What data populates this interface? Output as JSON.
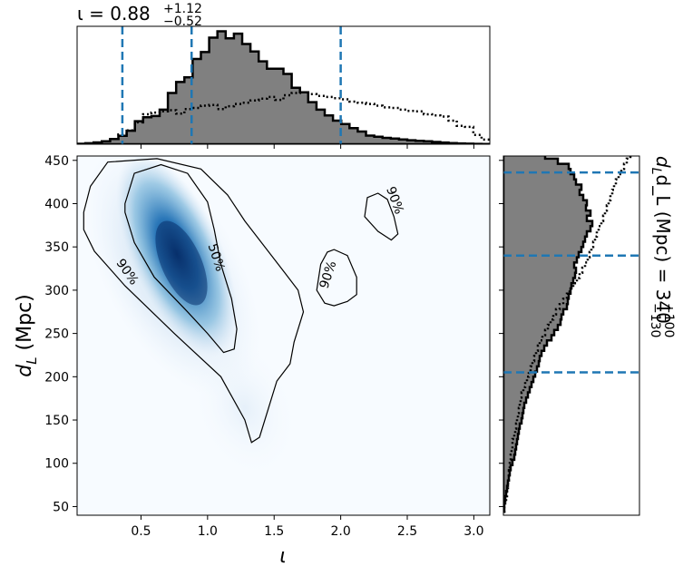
{
  "chart_data": [
    {
      "type": "heatmap",
      "panel": "joint",
      "xlabel": "ι",
      "ylabel": "d_L (Mpc)",
      "xlim": [
        0.02,
        3.12
      ],
      "ylim": [
        40,
        455
      ],
      "xticks": [
        "0.5",
        "1.0",
        "1.5",
        "2.0",
        "2.5",
        "3.0"
      ],
      "xtick_values": [
        0.5,
        1.0,
        1.5,
        2.0,
        2.5,
        3.0
      ],
      "yticks": [
        "50",
        "100",
        "150",
        "200",
        "250",
        "300",
        "350",
        "400",
        "450"
      ],
      "ytick_values": [
        50,
        100,
        150,
        200,
        250,
        300,
        350,
        400,
        450
      ],
      "colormap": "Blues",
      "density_peak": {
        "x": 0.82,
        "y": 330
      },
      "contours": [
        {
          "level": "90%",
          "points": [
            [
              0.07,
              390
            ],
            [
              0.12,
              420
            ],
            [
              0.25,
              448
            ],
            [
              0.62,
              452
            ],
            [
              0.95,
              440
            ],
            [
              1.15,
              410
            ],
            [
              1.28,
              380
            ],
            [
              1.58,
              320
            ],
            [
              1.68,
              300
            ],
            [
              1.72,
              275
            ],
            [
              1.65,
              240
            ],
            [
              1.62,
              215
            ],
            [
              1.52,
              195
            ],
            [
              1.46,
              165
            ],
            [
              1.39,
              130
            ],
            [
              1.33,
              124
            ],
            [
              1.28,
              150
            ],
            [
              1.1,
              200
            ],
            [
              0.75,
              250
            ],
            [
              0.38,
              305
            ],
            [
              0.15,
              345
            ],
            [
              0.07,
              370
            ],
            [
              0.07,
              390
            ]
          ]
        },
        {
          "level": "50%",
          "points": [
            [
              0.38,
              400
            ],
            [
              0.45,
              435
            ],
            [
              0.65,
              445
            ],
            [
              0.85,
              435
            ],
            [
              1.0,
              402
            ],
            [
              1.05,
              370
            ],
            [
              1.1,
              330
            ],
            [
              1.18,
              290
            ],
            [
              1.22,
              255
            ],
            [
              1.2,
              232
            ],
            [
              1.12,
              228
            ],
            [
              1.0,
              250
            ],
            [
              0.85,
              275
            ],
            [
              0.6,
              315
            ],
            [
              0.45,
              355
            ],
            [
              0.38,
              390
            ],
            [
              0.38,
              400
            ]
          ]
        },
        {
          "level": "90%",
          "points": [
            [
              1.82,
              300
            ],
            [
              1.85,
              330
            ],
            [
              1.9,
              344
            ],
            [
              1.95,
              347
            ],
            [
              2.05,
              340
            ],
            [
              2.12,
              315
            ],
            [
              2.12,
              295
            ],
            [
              2.05,
              287
            ],
            [
              1.95,
              282
            ],
            [
              1.88,
              285
            ],
            [
              1.82,
              300
            ]
          ]
        },
        {
          "level": "90%",
          "points": [
            [
              2.2,
              407
            ],
            [
              2.18,
              385
            ],
            [
              2.28,
              368
            ],
            [
              2.38,
              358
            ],
            [
              2.43,
              365
            ],
            [
              2.4,
              385
            ],
            [
              2.35,
              405
            ],
            [
              2.28,
              412
            ],
            [
              2.2,
              407
            ]
          ]
        }
      ],
      "contour_labels": [
        "90%",
        "50%",
        "90%",
        "90%"
      ]
    },
    {
      "type": "histogram",
      "panel": "top",
      "title": "ι = 0.88",
      "title_sup": "+1.12",
      "title_sub": "−0.52",
      "xlim": [
        0.02,
        3.12
      ],
      "bin_width": 0.062,
      "x_start": 0.02,
      "filled_values": [
        0.4,
        0.9,
        1.6,
        2.5,
        4.6,
        7.3,
        11.7,
        20,
        23.5,
        24.5,
        30,
        44.5,
        54,
        58,
        74,
        80,
        92.5,
        98,
        92,
        96,
        87,
        80.5,
        72,
        65.5,
        65.5,
        61,
        49,
        45,
        36.5,
        30,
        25,
        20.5,
        17.5,
        14,
        11,
        7.5,
        6.5,
        5.5,
        5,
        4.2,
        3.5,
        2.9,
        2.5,
        2.0,
        1.5,
        1.0,
        0.7,
        0.5,
        0.3,
        0.2
      ],
      "dotted_values": [
        0,
        0.5,
        1.2,
        2.6,
        4.5,
        8.5,
        12,
        19,
        26,
        27.5,
        28.5,
        29.5,
        26.5,
        30.5,
        31.5,
        33.5,
        34,
        30.5,
        33,
        35,
        36,
        38,
        39.5,
        41,
        38.5,
        42.5,
        44.5,
        45,
        43.5,
        42,
        41,
        40,
        39,
        37,
        36,
        35,
        33.5,
        32,
        31.5,
        30,
        29,
        28.5,
        26,
        25,
        24,
        20.5,
        16,
        15,
        8,
        4
      ],
      "dashed_lines": [
        0.36,
        0.88,
        2.0
      ]
    },
    {
      "type": "histogram",
      "panel": "right",
      "orientation": "horizontal",
      "ylabel": "d_L (Mpc) = 340",
      "ylabel_sup": "+100",
      "ylabel_sub": "−130",
      "ylim": [
        40,
        455
      ],
      "bin_width": 6,
      "y_start": 44,
      "filled_values": [
        1,
        1,
        2,
        3,
        4,
        5,
        6,
        7,
        8,
        10,
        12,
        13,
        14,
        15,
        16,
        17,
        18,
        20,
        21,
        22,
        23,
        25,
        27,
        29,
        31,
        33,
        35,
        37,
        39,
        40,
        42,
        45,
        48,
        53,
        56,
        60,
        63,
        64,
        66,
        70,
        71,
        72,
        74,
        75,
        77,
        79,
        80,
        78,
        81,
        83,
        86,
        88,
        90,
        92,
        96,
        98,
        92,
        96,
        91,
        92,
        88,
        84,
        86,
        80,
        78,
        74,
        72,
        60,
        46,
        18
      ],
      "dotted_values": [
        1,
        2,
        3,
        4,
        5,
        5,
        6,
        6,
        7,
        7,
        8,
        9,
        10,
        10,
        12,
        13,
        14,
        15,
        16,
        17,
        18,
        19,
        20,
        22,
        24,
        26,
        28,
        30,
        32,
        34,
        36,
        38,
        40,
        43,
        46,
        49,
        52,
        55,
        58,
        62,
        66,
        70,
        73,
        77,
        81,
        84,
        87,
        90,
        93,
        95,
        97,
        99,
        101,
        103,
        105,
        108,
        110,
        112,
        114,
        116,
        118,
        120,
        122,
        124,
        127,
        130,
        133,
        136,
        140,
        146
      ],
      "dashed_lines": [
        205,
        340,
        436
      ]
    }
  ],
  "colors": {
    "fill": "#808080",
    "outline": "#000000",
    "dashed": "#1f77b4",
    "dense": "#08306b",
    "light": "#f7fbff"
  }
}
